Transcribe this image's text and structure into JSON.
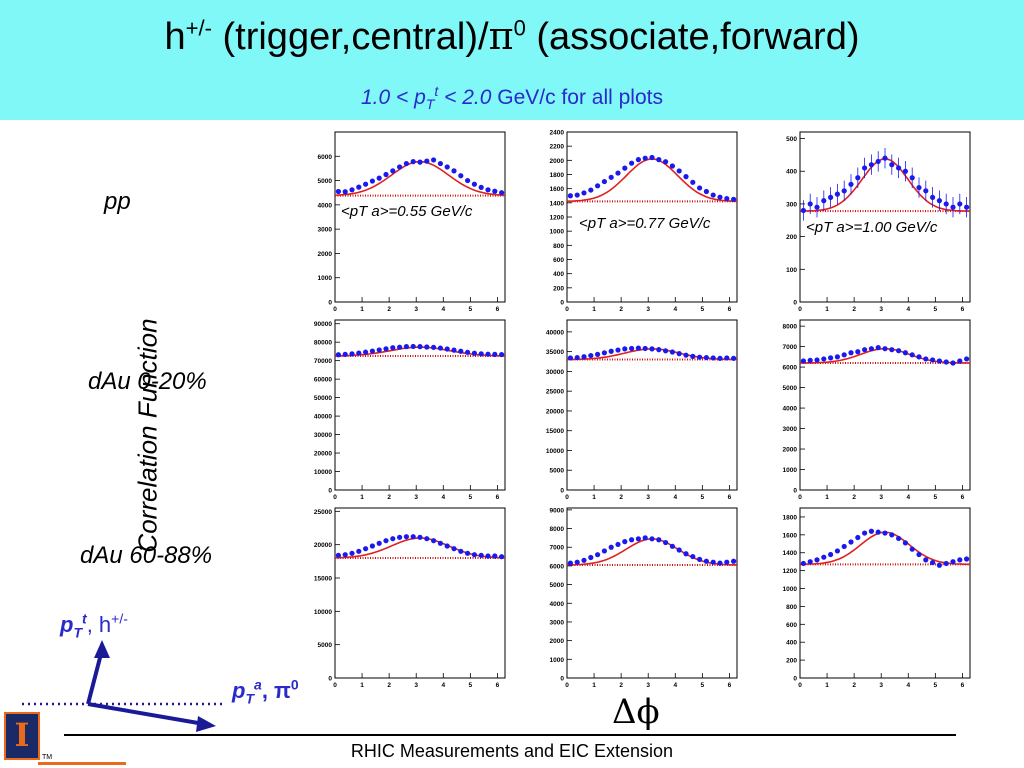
{
  "header": {
    "title_a": "h",
    "title_sup": "+/-",
    "title_b": " (trigger,central)/",
    "title_pi": "π",
    "title_sup0": "0",
    "title_c": " (associate,forward)",
    "subtitle_range_a": "1.0 < p",
    "subtitle_range_sub": "T",
    "subtitle_range_sup": "t",
    "subtitle_range_b": " < 2.0",
    "subtitle_rest": " GeV/c  for all plots"
  },
  "rows": [
    {
      "label": "pp"
    },
    {
      "label": "dAu 0-20%"
    },
    {
      "label": "dAu 60-88%"
    }
  ],
  "axes": {
    "ylabel": "Correlation Function",
    "xlabel": "Δϕ"
  },
  "diagram": {
    "trigger_p": "p",
    "trigger_sub": "T",
    "trigger_sup": "t",
    "trigger_rest": ", h",
    "trigger_sup2": "+/-",
    "assoc_p": "p",
    "assoc_sub": "T",
    "assoc_sup": "a",
    "assoc_rest": ", π",
    "assoc_sup2": "0"
  },
  "footer": {
    "text": "RHIC Measurements and EIC Extension"
  },
  "colors": {
    "header_bg": "#80f8f8",
    "label_blue": "#2a2acc",
    "fit": "#e02020",
    "data": "#1a1aee",
    "pedestal": "#cc1010"
  },
  "chart_data": [
    {
      "type": "scatter",
      "row": "pp",
      "col": 0,
      "annotation": "<pT a>=0.55 GeV/c",
      "xlim": [
        0,
        6.28
      ],
      "ylim": [
        0,
        7000
      ],
      "xticks": [
        0,
        1,
        2,
        3,
        4,
        5,
        6
      ],
      "yticks": [
        0,
        1000,
        2000,
        3000,
        4000,
        5000,
        6000
      ],
      "pedestal": 4380,
      "amp": 1400,
      "width": 1.05,
      "points": [
        4550,
        4540,
        4620,
        4730,
        4850,
        4980,
        5100,
        5250,
        5400,
        5560,
        5700,
        5780,
        5760,
        5800,
        5850,
        5700,
        5560,
        5400,
        5200,
        5000,
        4850,
        4720,
        4620,
        4560,
        4500
      ]
    },
    {
      "type": "scatter",
      "row": "pp",
      "col": 1,
      "annotation": "<pT a>=0.77 GeV/c",
      "xlim": [
        0,
        6.28
      ],
      "ylim": [
        0,
        2400
      ],
      "xticks": [
        0,
        1,
        2,
        3,
        4,
        5,
        6
      ],
      "yticks": [
        0,
        200,
        400,
        600,
        800,
        1000,
        1200,
        1400,
        1600,
        1800,
        2000,
        2200,
        2400
      ],
      "pedestal": 1420,
      "amp": 600,
      "width": 0.95,
      "points": [
        1500,
        1510,
        1540,
        1580,
        1640,
        1700,
        1760,
        1820,
        1890,
        1960,
        2010,
        2030,
        2040,
        2010,
        1980,
        1920,
        1850,
        1770,
        1690,
        1610,
        1560,
        1510,
        1480,
        1460,
        1450
      ]
    },
    {
      "type": "scatter",
      "row": "pp",
      "col": 2,
      "annotation": "<pT a>=1.00 GeV/c",
      "xlim": [
        0,
        6.28
      ],
      "ylim": [
        0,
        520
      ],
      "xticks": [
        0,
        1,
        2,
        3,
        4,
        5,
        6
      ],
      "yticks": [
        0,
        100,
        200,
        300,
        400,
        500
      ],
      "pedestal": 278,
      "amp": 160,
      "width": 0.85,
      "points": [
        280,
        300,
        290,
        310,
        320,
        330,
        340,
        360,
        380,
        410,
        420,
        430,
        440,
        420,
        410,
        400,
        380,
        350,
        340,
        320,
        310,
        300,
        290,
        300,
        290
      ]
    },
    {
      "type": "scatter",
      "row": "dAu 0-20%",
      "col": 0,
      "annotation": "",
      "xlim": [
        0,
        6.28
      ],
      "ylim": [
        0,
        92000
      ],
      "xticks": [
        0,
        1,
        2,
        3,
        4,
        5,
        6
      ],
      "yticks": [
        0,
        10000,
        20000,
        30000,
        40000,
        50000,
        60000,
        70000,
        80000,
        90000
      ],
      "pedestal": 72500,
      "amp": 4800,
      "width": 1.1,
      "points": [
        73200,
        73400,
        73700,
        74100,
        74600,
        75200,
        75800,
        76400,
        77000,
        77300,
        77600,
        77700,
        77600,
        77400,
        77200,
        76800,
        76300,
        75700,
        75100,
        74500,
        74000,
        73700,
        73500,
        73400,
        73300
      ]
    },
    {
      "type": "scatter",
      "row": "dAu 0-20%",
      "col": 1,
      "annotation": "",
      "xlim": [
        0,
        6.28
      ],
      "ylim": [
        0,
        43000
      ],
      "xticks": [
        0,
        1,
        2,
        3,
        4,
        5,
        6
      ],
      "yticks": [
        0,
        5000,
        10000,
        15000,
        20000,
        25000,
        30000,
        35000,
        40000
      ],
      "pedestal": 33000,
      "amp": 2700,
      "width": 1.0,
      "points": [
        33400,
        33500,
        33700,
        34000,
        34300,
        34700,
        35100,
        35400,
        35700,
        35800,
        35900,
        35800,
        35700,
        35500,
        35200,
        34900,
        34500,
        34100,
        33800,
        33600,
        33500,
        33400,
        33300,
        33400,
        33300
      ]
    },
    {
      "type": "scatter",
      "row": "dAu 0-20%",
      "col": 2,
      "annotation": "",
      "xlim": [
        0,
        6.28
      ],
      "ylim": [
        0,
        8300
      ],
      "xticks": [
        0,
        1,
        2,
        3,
        4,
        5,
        6
      ],
      "yticks": [
        0,
        1000,
        2000,
        3000,
        4000,
        5000,
        6000,
        7000,
        8000
      ],
      "pedestal": 6200,
      "amp": 700,
      "width": 0.9,
      "points": [
        6300,
        6330,
        6350,
        6400,
        6450,
        6500,
        6600,
        6700,
        6750,
        6850,
        6900,
        6950,
        6900,
        6850,
        6800,
        6700,
        6600,
        6500,
        6400,
        6350,
        6300,
        6250,
        6200,
        6300,
        6400
      ]
    },
    {
      "type": "scatter",
      "row": "dAu 60-88%",
      "col": 0,
      "annotation": "",
      "xlim": [
        0,
        6.28
      ],
      "ylim": [
        0,
        25500
      ],
      "xticks": [
        0,
        1,
        2,
        3,
        4,
        5,
        6
      ],
      "yticks": [
        0,
        5000,
        10000,
        15000,
        20000,
        25000
      ],
      "pedestal": 18000,
      "amp": 3000,
      "width": 1.05,
      "points": [
        18400,
        18500,
        18700,
        19000,
        19400,
        19800,
        20200,
        20600,
        20900,
        21100,
        21200,
        21200,
        21100,
        20900,
        20600,
        20200,
        19800,
        19400,
        19000,
        18700,
        18500,
        18400,
        18300,
        18300,
        18200
      ]
    },
    {
      "type": "scatter",
      "row": "dAu 60-88%",
      "col": 1,
      "annotation": "",
      "xlim": [
        0,
        6.28
      ],
      "ylim": [
        0,
        9100
      ],
      "xticks": [
        0,
        1,
        2,
        3,
        4,
        5,
        6
      ],
      "yticks": [
        0,
        1000,
        2000,
        3000,
        4000,
        5000,
        6000,
        7000,
        8000,
        9000
      ],
      "pedestal": 6050,
      "amp": 1400,
      "width": 0.95,
      "points": [
        6150,
        6200,
        6300,
        6450,
        6600,
        6800,
        7000,
        7150,
        7300,
        7400,
        7450,
        7500,
        7450,
        7400,
        7250,
        7050,
        6850,
        6650,
        6500,
        6350,
        6250,
        6200,
        6150,
        6200,
        6250
      ]
    },
    {
      "type": "scatter",
      "row": "dAu 60-88%",
      "col": 2,
      "annotation": "",
      "xlim": [
        0,
        6.28
      ],
      "ylim": [
        0,
        1900
      ],
      "xticks": [
        0,
        1,
        2,
        3,
        4,
        5,
        6
      ],
      "yticks": [
        0,
        200,
        400,
        600,
        800,
        1000,
        1200,
        1400,
        1600,
        1800
      ],
      "pedestal": 1270,
      "amp": 360,
      "width": 0.9,
      "points": [
        1280,
        1300,
        1320,
        1350,
        1380,
        1420,
        1470,
        1520,
        1570,
        1620,
        1640,
        1630,
        1620,
        1600,
        1560,
        1510,
        1440,
        1380,
        1320,
        1290,
        1260,
        1280,
        1300,
        1320,
        1330
      ]
    }
  ]
}
